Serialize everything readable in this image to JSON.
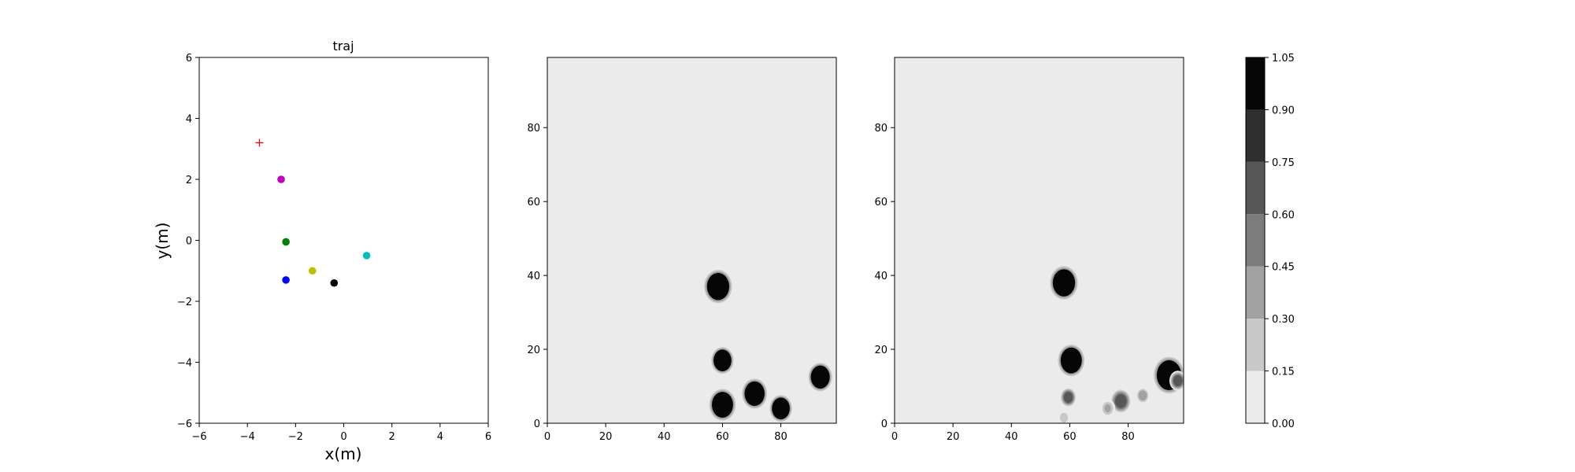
{
  "chart_data": [
    {
      "type": "scatter",
      "title": "traj",
      "xlabel": "x(m)",
      "ylabel": "y(m)",
      "xlim": [
        -6,
        6
      ],
      "ylim": [
        -6,
        6
      ],
      "xticks": [
        "−6",
        "−4",
        "−2",
        "0",
        "2",
        "4",
        "6"
      ],
      "yticks": [
        "−6",
        "−4",
        "−2",
        "0",
        "2",
        "4",
        "6"
      ],
      "grid": false,
      "points": [
        {
          "x": -3.5,
          "y": 3.2,
          "marker": "plus",
          "color": "#ff0000"
        },
        {
          "x": -2.6,
          "y": 2.0,
          "marker": "circle",
          "color": "#bf00bf"
        },
        {
          "x": -2.4,
          "y": -0.05,
          "marker": "circle",
          "color": "#007f00"
        },
        {
          "x": -2.4,
          "y": -1.3,
          "marker": "circle",
          "color": "#0000ff"
        },
        {
          "x": -1.3,
          "y": -1.0,
          "marker": "circle",
          "color": "#bfbf00"
        },
        {
          "x": 0.95,
          "y": -0.5,
          "marker": "circle",
          "color": "#00bfbf"
        },
        {
          "x": -0.4,
          "y": -1.4,
          "marker": "circle",
          "color": "#000000"
        }
      ]
    },
    {
      "type": "heatmap",
      "title": "",
      "xlim": [
        0,
        99
      ],
      "ylim": [
        0,
        99
      ],
      "xticks": [
        "0",
        "20",
        "40",
        "60",
        "80"
      ],
      "yticks": [
        "0",
        "20",
        "40",
        "60",
        "80"
      ],
      "background": "#ebebeb",
      "blobs": [
        {
          "x": 58.5,
          "y": 37,
          "r": 4.0,
          "level": 1.0
        },
        {
          "x": 60,
          "y": 17,
          "r": 3.2,
          "level": 1.0
        },
        {
          "x": 60,
          "y": 5,
          "r": 3.8,
          "level": 1.0
        },
        {
          "x": 71,
          "y": 8,
          "r": 3.6,
          "level": 1.0
        },
        {
          "x": 80,
          "y": 4,
          "r": 3.2,
          "level": 1.0
        },
        {
          "x": 93.5,
          "y": 12.5,
          "r": 3.4,
          "level": 1.0
        }
      ]
    },
    {
      "type": "heatmap",
      "title": "",
      "xlim": [
        0,
        99
      ],
      "ylim": [
        0,
        99
      ],
      "xticks": [
        "0",
        "20",
        "40",
        "60",
        "80"
      ],
      "yticks": [
        "0",
        "20",
        "40",
        "60",
        "80"
      ],
      "background": "#ebebeb",
      "blobs": [
        {
          "x": 58,
          "y": 38,
          "r": 4.0,
          "level": 1.0
        },
        {
          "x": 60.5,
          "y": 17,
          "r": 3.8,
          "level": 1.0
        },
        {
          "x": 59.5,
          "y": 7,
          "r": 2.2,
          "level": 0.6
        },
        {
          "x": 58,
          "y": 1.5,
          "r": 1.5,
          "level": 0.25
        },
        {
          "x": 77.5,
          "y": 6,
          "r": 2.8,
          "level": 0.7
        },
        {
          "x": 73,
          "y": 4,
          "r": 2.0,
          "level": 0.3
        },
        {
          "x": 85,
          "y": 7.5,
          "r": 1.8,
          "level": 0.4
        },
        {
          "x": 94,
          "y": 13,
          "r": 4.4,
          "level": 1.0
        },
        {
          "x": 97,
          "y": 11.5,
          "r": 2.2,
          "level": 0.6
        }
      ]
    },
    {
      "type": "colorbar",
      "levels": [
        0.0,
        0.15,
        0.3,
        0.45,
        0.6,
        0.75,
        0.9,
        1.05
      ],
      "tick_labels": [
        "0.00",
        "0.15",
        "0.30",
        "0.45",
        "0.60",
        "0.75",
        "0.90",
        "1.05"
      ],
      "colors": [
        "#ebebeb",
        "#c8c8c8",
        "#a2a2a2",
        "#7c7c7c",
        "#575757",
        "#2e2e2e",
        "#060606"
      ]
    }
  ]
}
